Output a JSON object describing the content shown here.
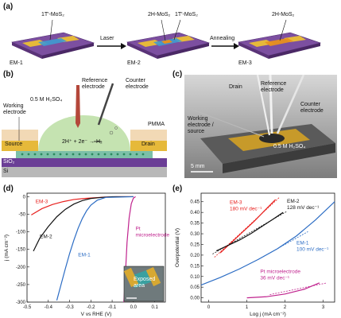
{
  "panels": {
    "a": {
      "label": "(a)",
      "device1": {
        "name": "EM-1",
        "flake": "1T′-MoS₂"
      },
      "arrow1": "Laser",
      "device2": {
        "name": "EM-2",
        "flake_left": "2H-MoS₂",
        "flake_right": "1T′-MoS₂"
      },
      "arrow2": "Annealing",
      "device3": {
        "name": "EM-3",
        "flake": "2H-MoS₂"
      }
    },
    "b": {
      "label": "(b)",
      "electrolyte": "0.5 M H₂SO₄",
      "reference": "Reference electrode",
      "counter": "Counter electrode",
      "working": "Working electrode",
      "pmma": "PMMA",
      "source": "Source",
      "drain": "Drain",
      "reaction": "2H⁺ + 2e⁻ → H₂",
      "sio2": "SiO₂",
      "si": "Si"
    },
    "c": {
      "label": "(c)",
      "drain": "Drain",
      "reference": "Reference electrode",
      "counter": "Counter electrode",
      "working": "Working electrode / source",
      "electrolyte": "0.5 M H₂SO₄",
      "scale": "5 mm"
    },
    "d": {
      "label": "(d)",
      "inset_label": "Exposed area"
    },
    "e": {
      "label": "(e)"
    }
  },
  "colors": {
    "substrate": "#7c4fa0",
    "gold": "#e6b93a",
    "red": "#e8201e",
    "black": "#111111",
    "blue": "#2b6cc4",
    "magenta": "#c0238e"
  },
  "chart_data": [
    {
      "type": "line",
      "xlabel": "V vs RHE (V)",
      "ylabel": "j (mA cm⁻²)",
      "xlim": [
        -0.5,
        0.15
      ],
      "ylim": [
        -300,
        10
      ],
      "xticks": [
        "-0.5",
        "-0.4",
        "-0.3",
        "-0.2",
        "-0.1",
        "0.0",
        "0.1"
      ],
      "yticks": [
        "0",
        "-50",
        "-100",
        "-150",
        "-200",
        "-250",
        "-300"
      ],
      "series": [
        {
          "name": "EM-3",
          "color": "#e8201e",
          "x": [
            -0.48,
            -0.43,
            -0.38,
            -0.33,
            -0.28,
            -0.23,
            -0.18,
            -0.13,
            -0.08,
            0.0
          ],
          "y": [
            -52,
            -34,
            -22,
            -14,
            -8,
            -5,
            -3,
            -1,
            0,
            0
          ]
        },
        {
          "name": "EM-2",
          "color": "#111111",
          "x": [
            -0.47,
            -0.44,
            -0.4,
            -0.36,
            -0.32,
            -0.28,
            -0.24,
            -0.2,
            -0.15,
            -0.1,
            0.0
          ],
          "y": [
            -155,
            -118,
            -85,
            -57,
            -36,
            -21,
            -11,
            -5,
            -2,
            0,
            0
          ]
        },
        {
          "name": "EM-1",
          "color": "#2b6cc4",
          "x": [
            -0.36,
            -0.34,
            -0.32,
            -0.3,
            -0.28,
            -0.26,
            -0.24,
            -0.22,
            -0.2,
            -0.17,
            -0.13,
            0.0
          ],
          "y": [
            -295,
            -250,
            -205,
            -162,
            -124,
            -90,
            -62,
            -40,
            -24,
            -10,
            -2,
            0
          ]
        },
        {
          "name": "Pt microelectrode",
          "color": "#c0238e",
          "x": [
            -0.045,
            -0.04,
            -0.035,
            -0.03,
            -0.02,
            -0.01,
            0.0,
            0.01
          ],
          "y": [
            -300,
            -250,
            -190,
            -130,
            -60,
            -20,
            -4,
            0
          ]
        }
      ]
    },
    {
      "type": "line",
      "xlabel": "Log j (mA cm⁻²)",
      "ylabel": "Overpotential (V)",
      "xlim": [
        -0.2,
        3.3
      ],
      "ylim": [
        -0.02,
        0.49
      ],
      "xticks": [
        "0",
        "1",
        "2",
        "3"
      ],
      "yticks": [
        "0.00",
        "0.05",
        "0.10",
        "0.15",
        "0.20",
        "0.25",
        "0.30",
        "0.35",
        "0.40",
        "0.45"
      ],
      "series": [
        {
          "name": "EM-3",
          "annotation": "180 mV dec⁻¹",
          "color": "#e8201e",
          "x": [
            0.3,
            0.6,
            0.9,
            1.2,
            1.5,
            1.75
          ],
          "y": [
            0.21,
            0.26,
            0.31,
            0.36,
            0.415,
            0.46
          ]
        },
        {
          "name": "EM-2",
          "annotation": "128 mV dec⁻¹",
          "color": "#111111",
          "x": [
            0.2,
            0.5,
            0.8,
            1.1,
            1.4,
            1.7,
            1.95
          ],
          "y": [
            0.22,
            0.245,
            0.27,
            0.3,
            0.335,
            0.37,
            0.4
          ]
        },
        {
          "name": "EM-1",
          "annotation": "100 mV dec⁻¹",
          "color": "#2b6cc4",
          "x": [
            -0.2,
            0.3,
            0.8,
            1.3,
            1.8,
            2.3,
            2.8,
            3.3
          ],
          "y": [
            0.06,
            0.095,
            0.135,
            0.18,
            0.23,
            0.29,
            0.365,
            0.45
          ]
        },
        {
          "name": "Pt microelectrode",
          "annotation": "36 mV dec⁻¹",
          "color": "#c0238e",
          "x": [
            1.0,
            1.5,
            2.0,
            2.5,
            2.9
          ],
          "y": [
            0.0,
            0.005,
            0.018,
            0.04,
            0.07
          ]
        }
      ]
    }
  ]
}
